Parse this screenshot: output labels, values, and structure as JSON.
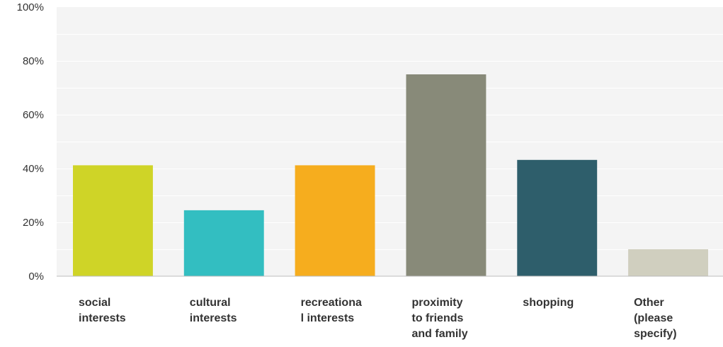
{
  "chart_data": {
    "type": "bar",
    "categories": [
      [
        "social",
        "interests"
      ],
      [
        "cultural",
        "interests"
      ],
      [
        "recreationa",
        "l interests"
      ],
      [
        "proximity",
        "to friends",
        "and family"
      ],
      [
        "shopping"
      ],
      [
        "Other",
        "(please",
        "specify)"
      ]
    ],
    "values": [
      41.2,
      24.5,
      41.2,
      75.0,
      43.2,
      10.0
    ],
    "unit": "%",
    "ylim": [
      0,
      100
    ],
    "yticks": [
      "0%",
      "20%",
      "40%",
      "60%",
      "80%",
      "100%"
    ],
    "ytick_values": [
      0,
      20,
      40,
      60,
      80,
      100
    ],
    "grid": true,
    "colors": {
      "bars": [
        "#cfd427",
        "#33bec1",
        "#f6ad1e",
        "#888a79",
        "#2e5e6b",
        "#d0cfbf"
      ],
      "plot_bg": "#f4f4f4",
      "grid": "#ffffff",
      "axis": "#bbbbbb",
      "text": "#333333"
    }
  }
}
